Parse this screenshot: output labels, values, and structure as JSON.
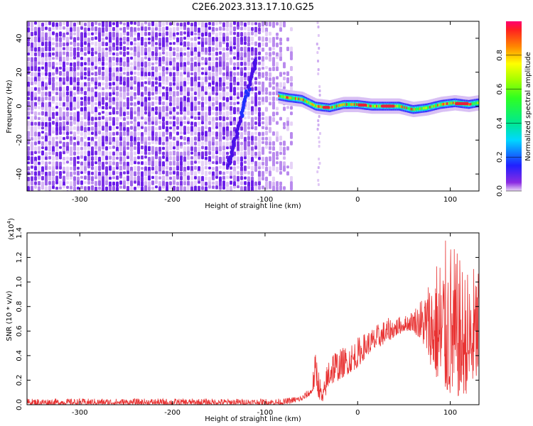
{
  "title": "C2E6.2023.313.17.10.G25",
  "chart_data": [
    {
      "type": "heatmap",
      "xlabel": "Height of straight line (km)",
      "ylabel": "Frequency (Hz)",
      "xlim": [
        -357,
        131
      ],
      "ylim": [
        -50,
        50
      ],
      "x_ticks": [
        -300,
        -200,
        -100,
        0,
        100
      ],
      "y_ticks": [
        -40,
        -20,
        0,
        20,
        40
      ],
      "grid": false,
      "colorbar": {
        "label": "Normalized spectral amplitude",
        "range": [
          0,
          1
        ],
        "ticks": [
          0.0,
          0.2,
          0.4,
          0.6,
          0.8
        ]
      },
      "features": {
        "noise_region_x": [
          -357,
          -70
        ],
        "faint_noise_column_x": [
          -45,
          -40
        ],
        "rising_streak": {
          "from": [
            -140,
            -35
          ],
          "to": [
            -110,
            27
          ]
        },
        "signal_ridge": {
          "x": [
            -85,
            -75,
            -60,
            -45,
            -30,
            -15,
            0,
            15,
            30,
            45,
            60,
            75,
            90,
            105,
            120,
            131
          ],
          "y": [
            6,
            5,
            4,
            0,
            -1,
            1,
            1,
            0,
            0,
            0,
            -2,
            -1,
            1,
            2,
            1,
            2
          ]
        }
      }
    },
    {
      "type": "line",
      "xlabel": "Height of straight line (km)",
      "ylabel": "SNR (10 * v/v)",
      "y_multiplier": "(x10",
      "y_multiplier_exp": "4",
      "y_multiplier_close": ")",
      "xlim": [
        -357,
        131
      ],
      "ylim": [
        0,
        1.4
      ],
      "x_ticks": [
        -300,
        -200,
        -100,
        0,
        100
      ],
      "y_ticks": [
        "0.0",
        "0.2",
        "0.4",
        "0.6",
        "0.8",
        "1.0",
        "1.2",
        "1.4"
      ],
      "grid": false,
      "color": "#e83232",
      "envelope": {
        "x": [
          -357,
          -80,
          -60,
          -50,
          -45,
          -42,
          -38,
          -30,
          -20,
          -10,
          0,
          10,
          20,
          30,
          40,
          50,
          60,
          70,
          80,
          90,
          100,
          110,
          120,
          131
        ],
        "low": [
          0.0,
          0.0,
          0.03,
          0.08,
          0.15,
          0.05,
          0.0,
          0.15,
          0.2,
          0.25,
          0.3,
          0.4,
          0.45,
          0.5,
          0.55,
          0.6,
          0.6,
          0.5,
          0.3,
          0.1,
          0.05,
          0.05,
          0.1,
          0.2
        ],
        "high": [
          0.05,
          0.05,
          0.08,
          0.15,
          0.48,
          0.3,
          0.1,
          0.5,
          0.45,
          0.5,
          0.55,
          0.6,
          0.65,
          0.7,
          0.72,
          0.72,
          0.78,
          0.9,
          1.1,
          1.3,
          1.38,
          1.2,
          1.1,
          1.2
        ]
      }
    }
  ]
}
